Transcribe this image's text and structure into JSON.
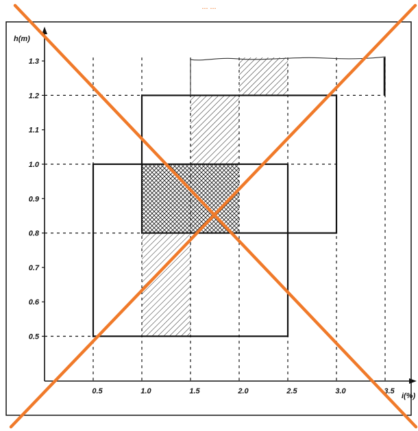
{
  "caption": "... ...",
  "chart_data": {
    "type": "area",
    "title": "",
    "xlabel": "i(%)",
    "ylabel": "h(m)",
    "xlim": [
      0,
      4.0
    ],
    "ylim": [
      0.4,
      1.4
    ],
    "x_ticks": [
      0.5,
      1.0,
      1.5,
      2.0,
      2.5,
      3.0,
      3.5
    ],
    "x_tick_labels": [
      "0.5",
      "1.0",
      "1.5",
      "2.0",
      "2.5",
      "3.0",
      "3.5"
    ],
    "y_ticks": [
      0.5,
      0.6,
      0.7,
      0.8,
      0.9,
      1.0,
      1.1,
      1.2,
      1.3
    ],
    "y_tick_labels": [
      "0.5",
      "0.6",
      "0.7",
      "0.8",
      "0.9",
      "1.0",
      "1.1",
      "1.2",
      "1.3"
    ],
    "rectangles": [
      {
        "x": [
          0.5,
          2.5
        ],
        "y": [
          0.5,
          1.0
        ]
      },
      {
        "x": [
          1.0,
          3.0
        ],
        "y": [
          0.8,
          1.2
        ]
      },
      {
        "x": [
          1.5,
          3.5
        ],
        "y": [
          1.2,
          1.31
        ]
      }
    ],
    "hatched_regions": [
      {
        "x": [
          1.0,
          1.5
        ],
        "y": [
          0.5,
          0.8
        ],
        "pattern": "diagonal"
      },
      {
        "x": [
          1.0,
          2.0
        ],
        "y": [
          0.8,
          1.0
        ],
        "pattern": "crosshatch"
      },
      {
        "x": [
          1.5,
          2.0
        ],
        "y": [
          1.0,
          1.2
        ],
        "pattern": "diagonal"
      },
      {
        "x": [
          2.0,
          2.5
        ],
        "y": [
          1.2,
          1.31
        ],
        "pattern": "diagonal"
      }
    ],
    "dashed_h_lines": [
      0.5,
      0.8,
      1.0,
      1.2
    ],
    "dashed_v_lines": [
      0.5,
      1.0,
      1.5,
      2.0,
      2.5,
      3.0,
      3.5
    ],
    "overlay": "crossed-out (orange X)",
    "colors": {
      "line": "#111111",
      "overlay": "#f07a2a",
      "caption": "#f07a2a"
    }
  }
}
